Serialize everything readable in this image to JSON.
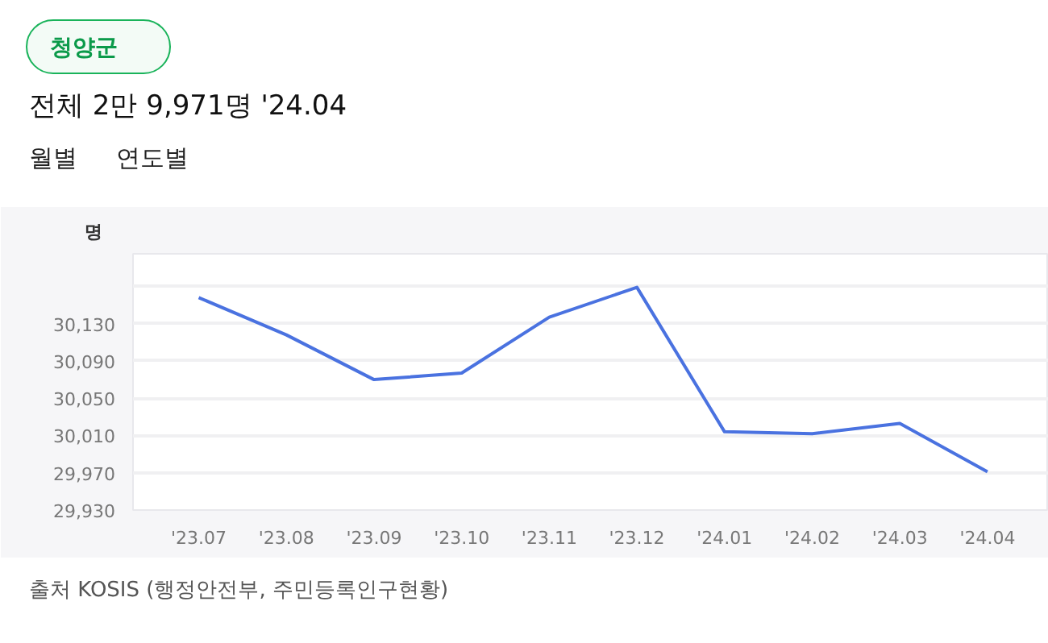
{
  "chart_data": {
    "type": "line",
    "title": "청양군",
    "subtitle": "전체 2만 9,971명 '24.04",
    "ylabel": "명",
    "categories": [
      "'23.07",
      "'23.08",
      "'23.09",
      "'23.10",
      "'23.11",
      "'23.12",
      "'24.01",
      "'24.02",
      "'24.03",
      "'24.04"
    ],
    "series": [
      {
        "color": "#4a72e0",
        "values": [
          30158,
          30118,
          30070,
          30077,
          30137,
          30169,
          30014,
          30012,
          30023,
          29971
        ]
      }
    ],
    "ylim": [
      29930,
      30205
    ],
    "yticks": [
      {
        "value": 29930,
        "label": "29,930"
      },
      {
        "value": 29970,
        "label": "29,970"
      },
      {
        "value": 30010,
        "label": "30,010"
      },
      {
        "value": 30050,
        "label": "30,050"
      },
      {
        "value": 30090,
        "label": "30,090"
      },
      {
        "value": 30130,
        "label": "30,130"
      },
      {
        "value": 30170,
        "label": null
      }
    ],
    "grid": "y",
    "marker": "none",
    "line_style": "solid",
    "annotations": [
      "월별",
      "연도별",
      "출처 KOSIS (행정안전부, 주민등록인구현황)"
    ]
  }
}
